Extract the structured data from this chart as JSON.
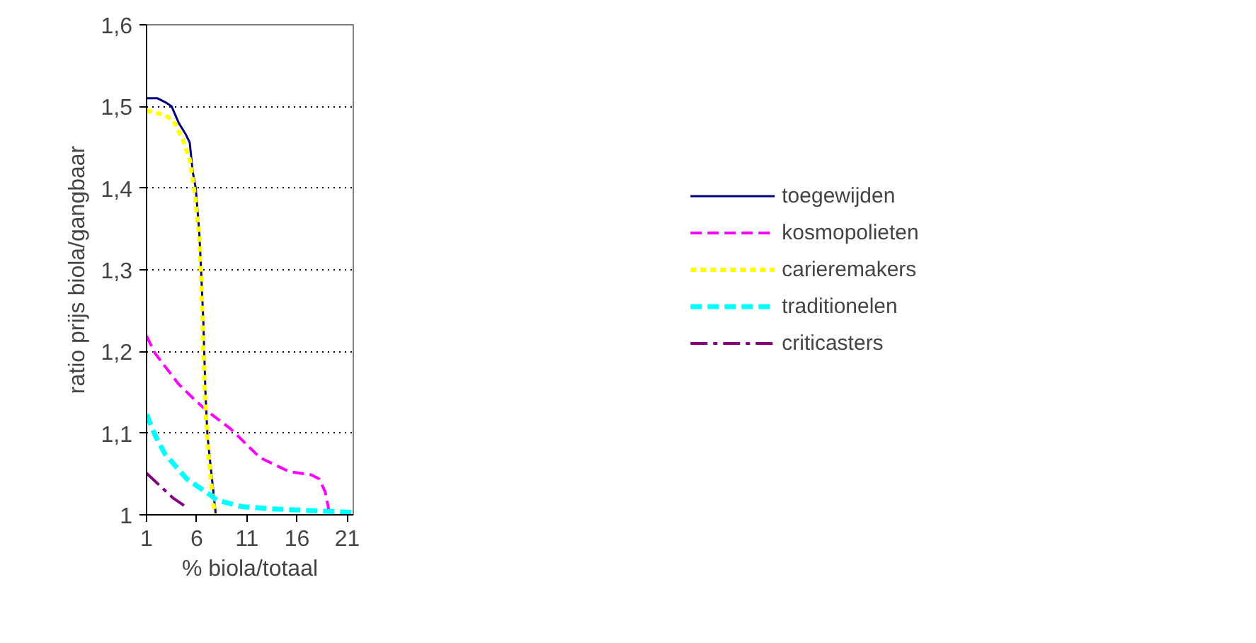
{
  "chart_data": {
    "type": "line",
    "xlabel": "% biola/totaal",
    "ylabel": "ratio prijs biola/gangbaar",
    "xlim": [
      1,
      21.6
    ],
    "xticks": [
      1,
      6,
      11,
      16,
      21
    ],
    "ylim": [
      1,
      1.6
    ],
    "yticks": [
      {
        "value": 1,
        "label": "1"
      },
      {
        "value": 1.1,
        "label": "1,1"
      },
      {
        "value": 1.2,
        "label": "1,2"
      },
      {
        "value": 1.3,
        "label": "1,3"
      },
      {
        "value": 1.4,
        "label": "1,4"
      },
      {
        "value": 1.5,
        "label": "1,5"
      },
      {
        "value": 1.6,
        "label": "1,6"
      }
    ],
    "grid": "y",
    "legend": "right",
    "marker": "none",
    "series": [
      {
        "name": "toegewijden",
        "color": "#000080",
        "line_style": "solid",
        "x": [
          1,
          2.1,
          2.9,
          3.5,
          4.2,
          4.9,
          5.3,
          5.6,
          5.9,
          6.25,
          6.45,
          6.66,
          6.87,
          7.07,
          7.36,
          7.6,
          7.9
        ],
        "values": [
          1.51,
          1.51,
          1.505,
          1.5,
          1.48,
          1.466,
          1.456,
          1.42,
          1.4,
          1.347,
          1.295,
          1.236,
          1.149,
          1.097,
          1.062,
          1.035,
          1.0
        ]
      },
      {
        "name": "kosmopolieten",
        "color": "#ff00ff",
        "line_style": "dashed",
        "x": [
          1,
          1.83,
          4.2,
          5.7,
          6.95,
          9.4,
          12.3,
          15.2,
          17.4,
          18.2,
          18.8,
          19.1,
          19.2
        ],
        "values": [
          1.219,
          1.198,
          1.16,
          1.142,
          1.128,
          1.105,
          1.07,
          1.053,
          1.049,
          1.044,
          1.028,
          1.01,
          1.0
        ]
      },
      {
        "name": "carieremakers",
        "color": "#ffff00",
        "line_style": "dotted",
        "x": [
          1,
          2.65,
          3.6,
          4.6,
          5.3,
          5.83,
          6.25,
          6.5,
          6.66,
          6.87,
          7.16,
          7.57,
          7.8
        ],
        "values": [
          1.495,
          1.49,
          1.484,
          1.46,
          1.435,
          1.39,
          1.34,
          1.27,
          1.2,
          1.128,
          1.075,
          1.023,
          1.0
        ]
      },
      {
        "name": "traditionelen",
        "color": "#00ffff",
        "line_style": "dashed",
        "x": [
          1,
          1.83,
          2.8,
          5.0,
          7.5,
          8.0,
          10.5,
          14,
          21.5
        ],
        "values": [
          1.123,
          1.098,
          1.075,
          1.044,
          1.023,
          1.018,
          1.01,
          1.007,
          1.003
        ]
      },
      {
        "name": "criticasters",
        "color": "#800080",
        "line_style": "dashdot",
        "x": [
          1,
          3.6,
          4.9,
          5.1
        ],
        "values": [
          1.051,
          1.021,
          1.01,
          1.01
        ]
      }
    ]
  }
}
